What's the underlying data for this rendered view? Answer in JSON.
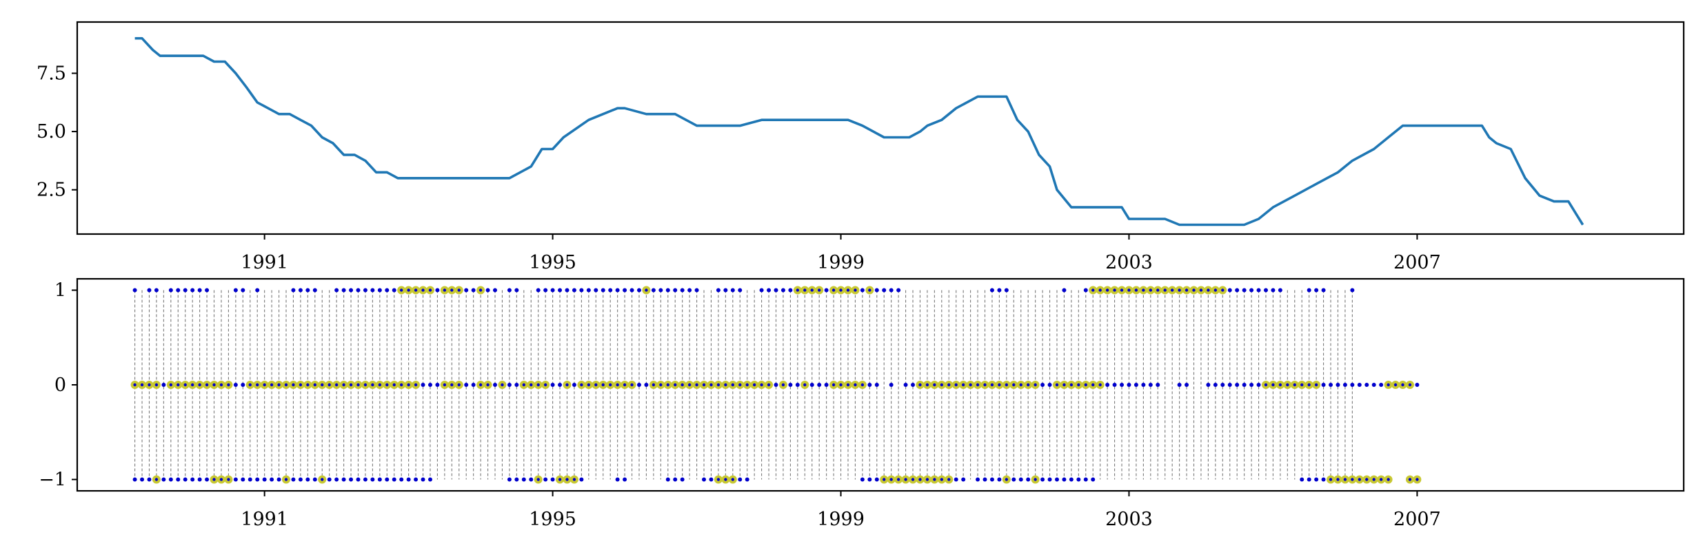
{
  "chart_data": [
    {
      "type": "line",
      "title": "",
      "xlabel": "",
      "ylabel": "",
      "color": "#1f77b4",
      "xlim": [
        1988.4,
        2010.7
      ],
      "ylim": [
        0.6,
        9.7
      ],
      "xticks": [
        1991,
        1995,
        1999,
        2003,
        2007
      ],
      "xtick_labels": [
        "1991",
        "1995",
        "1999",
        "2003",
        "2007"
      ],
      "yticks": [
        2.5,
        5.0,
        7.5
      ],
      "ytick_labels": [
        "2.5",
        "5.0",
        "7.5"
      ],
      "grid": false,
      "series": [
        {
          "x": [
            1989.2,
            1989.3,
            1989.45,
            1989.55,
            1989.7,
            1989.85,
            1990.0,
            1990.15,
            1990.3,
            1990.45,
            1990.6,
            1990.75,
            1990.9,
            1991.05,
            1991.2,
            1991.35,
            1991.5,
            1991.65,
            1991.8,
            1991.95,
            1992.1,
            1992.25,
            1992.4,
            1992.55,
            1992.7,
            1992.85,
            1993.0,
            1993.5,
            1994.0,
            1994.4,
            1994.55,
            1994.7,
            1994.85,
            1995.0,
            1995.15,
            1995.5,
            1995.9,
            1996.0,
            1996.3,
            1996.7,
            1997.0,
            1997.4,
            1997.6,
            1997.9,
            1998.2,
            1998.5,
            1998.7,
            1998.95,
            1999.1,
            1999.3,
            1999.6,
            1999.8,
            1999.95,
            2000.1,
            2000.2,
            2000.4,
            2000.6,
            2000.9,
            2001.0,
            2001.15,
            2001.3,
            2001.45,
            2001.6,
            2001.75,
            2001.9,
            2002.0,
            2002.2,
            2002.5,
            2002.9,
            2003.0,
            2003.2,
            2003.5,
            2003.7,
            2004.0,
            2004.3,
            2004.6,
            2004.8,
            2005.0,
            2005.3,
            2005.6,
            2005.9,
            2006.1,
            2006.4,
            2006.6,
            2006.8,
            2007.0,
            2007.3,
            2007.6,
            2007.75,
            2007.9,
            2008.0,
            2008.1,
            2008.3,
            2008.5,
            2008.7,
            2008.9,
            2009.1,
            2009.3
          ],
          "y": [
            9.0,
            9.0,
            8.5,
            8.25,
            8.25,
            8.25,
            8.25,
            8.25,
            8.0,
            8.0,
            7.5,
            6.9,
            6.25,
            6.0,
            5.75,
            5.75,
            5.5,
            5.25,
            4.75,
            4.5,
            4.0,
            4.0,
            3.75,
            3.25,
            3.25,
            3.0,
            3.0,
            3.0,
            3.0,
            3.0,
            3.25,
            3.5,
            4.25,
            4.25,
            4.75,
            5.5,
            6.0,
            6.0,
            5.75,
            5.75,
            5.25,
            5.25,
            5.25,
            5.5,
            5.5,
            5.5,
            5.5,
            5.5,
            5.5,
            5.25,
            4.75,
            4.75,
            4.75,
            5.0,
            5.25,
            5.5,
            6.0,
            6.5,
            6.5,
            6.5,
            6.5,
            5.5,
            5.0,
            4.0,
            3.5,
            2.5,
            1.75,
            1.75,
            1.75,
            1.25,
            1.25,
            1.25,
            1.0,
            1.0,
            1.0,
            1.0,
            1.25,
            1.75,
            2.25,
            2.75,
            3.25,
            3.75,
            4.25,
            4.75,
            5.25,
            5.25,
            5.25,
            5.25,
            5.25,
            5.25,
            4.75,
            4.5,
            4.25,
            3.0,
            2.25,
            2.0,
            2.0,
            1.0
          ]
        }
      ]
    },
    {
      "type": "scatter",
      "title": "",
      "xlabel": "",
      "ylabel": "",
      "xlim": [
        1988.4,
        2010.7
      ],
      "ylim": [
        -1.12,
        1.12
      ],
      "xticks": [
        1991,
        1995,
        1999,
        2003,
        2007
      ],
      "xtick_labels": [
        "1991",
        "1995",
        "1999",
        "2003",
        "2007"
      ],
      "yticks": [
        -1,
        0,
        1
      ],
      "ytick_labels": [
        "−1",
        "0",
        "1"
      ],
      "grid": false,
      "event_lines": true,
      "x_start": 1989.2,
      "step": 0.1,
      "colors": {
        "blue": "#0000cc",
        "yellow": "#c8c832",
        "event_line": "#777777"
      },
      "series": [
        {
          "name": "",
          "y": 1,
          "pattern": "B.BB.BBBBBB...BB.B....BBBB..BBBBBBBBBYYYYYBYYYBBYBB.BB..BBBBBBBBBBBBBBBYBBBBBBB..BBBB..BBBBBYYYYBYYYYBYBBBB............BBB.......B..BYYYYYYYYYYYYYYYYYYYBBBBBBBB...BBB...B"
        },
        {
          "name": "",
          "y": 0,
          "pattern": "YYYYBYYYYYYYYYBBYYYYYYYYYYYYYYYYYYYYYYYYBBBYYYBBYYBYBBYYYYBBYBYYYYYYYYBBYYYYYYYYYYYYYYYYYBYBBYBBBYYYYYBB.B.BBYYYYYYYYYYYYYYYYYBBYYYYYYYBBBBBBBB..BB..BBBBBBBBYYYYYYYYBBBBBBBBBYYYYB"
        },
        {
          "name": "",
          "y": -1,
          "pattern": "BBBYBBBBBBBYYYBBBBBBBYBBBBYBBBBBBBBBBBBBBB..........BBBBYBBYYYB....BB.....BBB..BBYYYBB...............BBBYYYYYYYYYYBB.BBBBYBBBYBBBBBBBB............................BBBBYYYYYYYYY..YY"
        }
      ]
    }
  ]
}
